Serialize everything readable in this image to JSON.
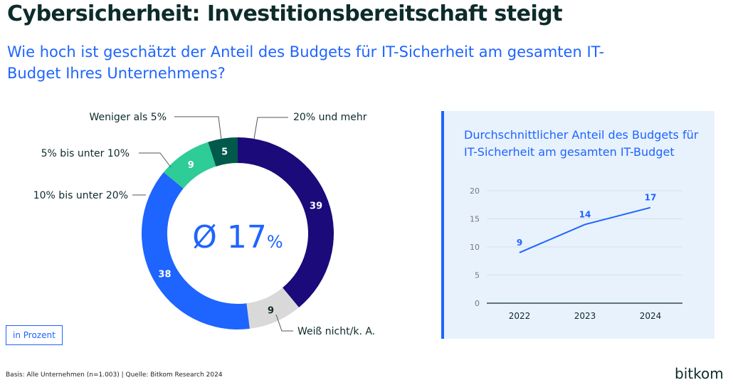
{
  "title": "Cybersicherheit: Investitionsbereitschaft steigt",
  "subtitle": "Wie hoch ist geschätzt der Anteil des Budgets für IT-Sicherheit am gesamten IT-Budget Ihres Unternehmens?",
  "unit_label": "in Prozent",
  "basis": "Basis: Alle Unternehmen (n=1.003) | Quelle: Bitkom Research 2024",
  "logo": "bitkom",
  "chart_data": [
    {
      "type": "pie",
      "variant": "donut",
      "center_label": "Ø 17",
      "center_unit": "%",
      "slices": [
        {
          "label": "20% und mehr",
          "value": 39,
          "color": "#1a0a7a",
          "text_color": "#ffffff"
        },
        {
          "label": "Weiß nicht/k. A.",
          "value": 9,
          "color": "#d9d9d9",
          "text_color": "#0e2a2a"
        },
        {
          "label": "10% bis unter 20%",
          "value": 38,
          "color": "#1e64ff",
          "text_color": "#ffffff"
        },
        {
          "label": "5% bis unter 10%",
          "value": 9,
          "color": "#2ecc96",
          "text_color": "#ffffff"
        },
        {
          "label": "Weniger als 5%",
          "value": 5,
          "color": "#00594a",
          "text_color": "#ffffff"
        }
      ]
    },
    {
      "type": "line",
      "title": "Durchschnittlicher Anteil des Budgets für IT-Sicherheit am gesamten IT-Budget",
      "categories": [
        "2022",
        "2023",
        "2024"
      ],
      "values": [
        9,
        14,
        17
      ],
      "yticks": [
        0,
        5,
        10,
        15,
        20
      ],
      "ylim": [
        0,
        20
      ],
      "grid": true,
      "color": "#1e64ff"
    }
  ]
}
